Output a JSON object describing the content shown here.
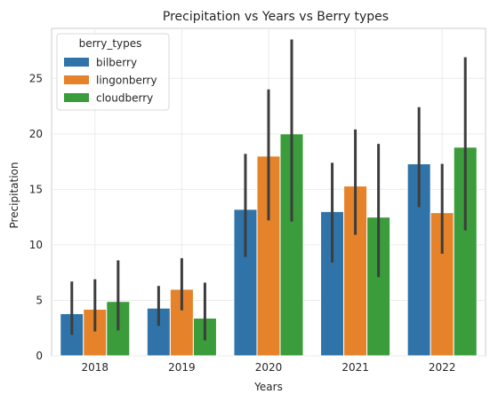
{
  "chart_data": {
    "type": "bar",
    "title": "Precipitation vs Years vs Berry types",
    "xlabel": "Years",
    "ylabel": "Precipitation",
    "categories": [
      "2018",
      "2019",
      "2020",
      "2021",
      "2022"
    ],
    "ylim": [
      0,
      29.5
    ],
    "yticks": [
      0,
      5,
      10,
      15,
      20,
      25
    ],
    "grid": true,
    "legend": {
      "title": "berry_types",
      "placement": "top-left"
    },
    "series": [
      {
        "name": "bilberry",
        "color": "#2f73a8",
        "values": [
          3.8,
          4.3,
          13.2,
          13.0,
          17.3
        ],
        "ci_low": [
          1.9,
          2.7,
          8.9,
          8.4,
          13.4
        ],
        "ci_high": [
          6.7,
          6.3,
          18.2,
          17.4,
          22.4
        ]
      },
      {
        "name": "lingonberry",
        "color": "#e6822a",
        "values": [
          4.2,
          6.0,
          18.0,
          15.3,
          12.9
        ],
        "ci_low": [
          2.2,
          4.1,
          12.2,
          10.9,
          9.2
        ],
        "ci_high": [
          6.9,
          8.8,
          24.0,
          20.4,
          17.3
        ]
      },
      {
        "name": "cloudberry",
        "color": "#3a9c3a",
        "values": [
          4.9,
          3.4,
          20.0,
          12.5,
          18.8
        ],
        "ci_low": [
          2.3,
          1.4,
          12.1,
          7.1,
          11.3
        ],
        "ci_high": [
          8.6,
          6.6,
          28.5,
          19.1,
          26.9
        ]
      }
    ]
  }
}
